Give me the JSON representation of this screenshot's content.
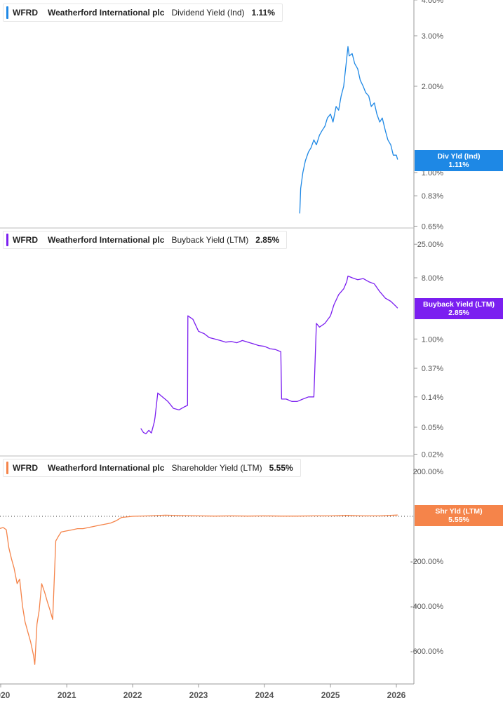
{
  "panels": [
    {
      "ticker": "WFRD",
      "company": "Weatherford International plc",
      "metric": "Dividend Yield (Ind)",
      "value_label": "1.11%",
      "badge_label": "Div Yld (Ind)",
      "badge_value": "1.11%",
      "color": "#1e88e5"
    },
    {
      "ticker": "WFRD",
      "company": "Weatherford International plc",
      "metric": "Buyback Yield (LTM)",
      "value_label": "2.85%",
      "badge_label": "Buyback Yield (LTM)",
      "badge_value": "2.85%",
      "color": "#7b1ff0"
    },
    {
      "ticker": "WFRD",
      "company": "Weatherford International plc",
      "metric": "Shareholder Yield (LTM)",
      "value_label": "5.55%",
      "badge_label": "Shr Yld (LTM)",
      "badge_value": "5.55%",
      "color": "#f5844a"
    }
  ],
  "x_axis": {
    "ticks": [
      "2020",
      "2021",
      "2022",
      "2023",
      "2024",
      "2025",
      "2026"
    ]
  },
  "chart_data": [
    {
      "type": "line",
      "name": "Dividend Yield (Ind)",
      "scale": "log",
      "y_ticks": [
        "4.00%",
        "3.00%",
        "2.00%",
        "1.00%",
        "0.83%",
        "0.65%"
      ],
      "y_tick_values": [
        4.0,
        3.0,
        2.0,
        1.0,
        0.83,
        0.65
      ],
      "ylim": [
        0.65,
        4.0
      ],
      "x": [
        "2024-07-15",
        "2024-07-20",
        "2024-08-01",
        "2024-08-15",
        "2024-09-01",
        "2024-09-15",
        "2024-10-01",
        "2024-10-15",
        "2024-11-01",
        "2024-11-15",
        "2024-12-01",
        "2024-12-15",
        "2025-01-01",
        "2025-01-15",
        "2025-02-01",
        "2025-02-15",
        "2025-03-01",
        "2025-03-15",
        "2025-04-01",
        "2025-04-08",
        "2025-04-15",
        "2025-05-01",
        "2025-05-15",
        "2025-06-01",
        "2025-06-15",
        "2025-07-01",
        "2025-07-15",
        "2025-08-01",
        "2025-08-15",
        "2025-09-01",
        "2025-09-15",
        "2025-10-01",
        "2025-10-15",
        "2025-11-01",
        "2025-11-15",
        "2025-12-01",
        "2025-12-15",
        "2026-01-01",
        "2026-01-08"
      ],
      "values": [
        0.72,
        0.88,
        1.0,
        1.1,
        1.18,
        1.22,
        1.3,
        1.25,
        1.35,
        1.4,
        1.45,
        1.55,
        1.6,
        1.5,
        1.7,
        1.65,
        1.85,
        2.0,
        2.5,
        2.75,
        2.55,
        2.6,
        2.4,
        2.3,
        2.1,
        2.0,
        1.9,
        1.85,
        1.7,
        1.75,
        1.6,
        1.5,
        1.55,
        1.4,
        1.3,
        1.25,
        1.15,
        1.15,
        1.11
      ]
    },
    {
      "type": "line",
      "name": "Buyback Yield (LTM)",
      "scale": "log",
      "y_ticks": [
        "25.00%",
        "8.00%",
        "1.00%",
        "0.37%",
        "0.14%",
        "0.05%",
        "0.02%"
      ],
      "y_tick_values": [
        25.0,
        8.0,
        1.0,
        0.37,
        0.14,
        0.05,
        0.02
      ],
      "ylim": [
        0.02,
        25.0
      ],
      "x": [
        "2022-02-15",
        "2022-03-01",
        "2022-03-15",
        "2022-04-01",
        "2022-04-15",
        "2022-05-01",
        "2022-05-05",
        "2022-05-20",
        "2022-06-15",
        "2022-07-15",
        "2022-08-15",
        "2022-09-15",
        "2022-10-15",
        "2022-11-01",
        "2022-11-03",
        "2022-12-01",
        "2023-01-01",
        "2023-02-01",
        "2023-03-01",
        "2023-04-01",
        "2023-05-01",
        "2023-06-01",
        "2023-07-01",
        "2023-08-01",
        "2023-09-01",
        "2023-10-01",
        "2023-11-01",
        "2023-12-01",
        "2024-01-01",
        "2024-02-01",
        "2024-03-01",
        "2024-04-01",
        "2024-04-05",
        "2024-05-01",
        "2024-06-01",
        "2024-07-01",
        "2024-08-01",
        "2024-09-01",
        "2024-10-01",
        "2024-10-15",
        "2024-11-01",
        "2024-12-01",
        "2025-01-01",
        "2025-01-20",
        "2025-02-15",
        "2025-03-15",
        "2025-04-01",
        "2025-04-08",
        "2025-05-01",
        "2025-06-01",
        "2025-07-01",
        "2025-08-01",
        "2025-09-01",
        "2025-10-01",
        "2025-11-01",
        "2025-12-01",
        "2026-01-01",
        "2026-01-08"
      ],
      "values": [
        0.048,
        0.042,
        0.04,
        0.045,
        0.041,
        0.06,
        0.07,
        0.16,
        0.14,
        0.12,
        0.095,
        0.09,
        0.1,
        0.105,
        2.2,
        1.95,
        1.3,
        1.2,
        1.05,
        1.0,
        0.95,
        0.9,
        0.92,
        0.88,
        0.95,
        0.9,
        0.85,
        0.8,
        0.78,
        0.72,
        0.7,
        0.65,
        0.13,
        0.13,
        0.12,
        0.12,
        0.13,
        0.14,
        0.14,
        1.7,
        1.5,
        1.7,
        2.2,
        3.2,
        4.5,
        5.5,
        7.0,
        8.5,
        8.0,
        7.5,
        7.8,
        7.0,
        6.5,
        5.0,
        4.0,
        3.6,
        3.0,
        2.85
      ]
    },
    {
      "type": "line",
      "name": "Shareholder Yield (LTM)",
      "scale": "linear",
      "y_ticks": [
        "200.00%",
        "-200.00%",
        "-400.00%",
        "-600.00%"
      ],
      "y_tick_values": [
        200,
        -200,
        -400,
        -600
      ],
      "ylim": [
        -660,
        230
      ],
      "zero_line": true,
      "x": [
        "2019-12-25",
        "2020-01-15",
        "2020-02-01",
        "2020-02-15",
        "2020-03-01",
        "2020-03-15",
        "2020-04-01",
        "2020-04-15",
        "2020-05-01",
        "2020-05-15",
        "2020-06-01",
        "2020-06-15",
        "2020-07-01",
        "2020-07-08",
        "2020-07-20",
        "2020-08-01",
        "2020-08-15",
        "2020-09-01",
        "2020-09-15",
        "2020-10-01",
        "2020-10-15",
        "2020-11-01",
        "2020-11-15",
        "2020-12-01",
        "2021-01-01",
        "2021-02-01",
        "2021-03-01",
        "2021-04-01",
        "2021-05-01",
        "2021-06-01",
        "2021-07-01",
        "2021-08-01",
        "2021-09-01",
        "2021-10-01",
        "2021-11-01",
        "2022-01-01",
        "2022-04-01",
        "2022-07-01",
        "2022-10-01",
        "2023-01-01",
        "2023-04-01",
        "2023-07-01",
        "2023-10-01",
        "2024-01-01",
        "2024-04-01",
        "2024-07-01",
        "2024-10-01",
        "2025-01-01",
        "2025-04-01",
        "2025-07-01",
        "2025-10-01",
        "2026-01-08"
      ],
      "values": [
        -55,
        -50,
        -60,
        -140,
        -190,
        -230,
        -300,
        -280,
        -400,
        -470,
        -520,
        -560,
        -620,
        -660,
        -480,
        -420,
        -300,
        -340,
        -380,
        -420,
        -460,
        -110,
        -90,
        -70,
        -65,
        -60,
        -55,
        -55,
        -50,
        -45,
        -40,
        -35,
        -30,
        -20,
        -5,
        0,
        2,
        5,
        3,
        2,
        1,
        2,
        1,
        2,
        1,
        1,
        2,
        2,
        4,
        2,
        2,
        5.55
      ]
    }
  ]
}
